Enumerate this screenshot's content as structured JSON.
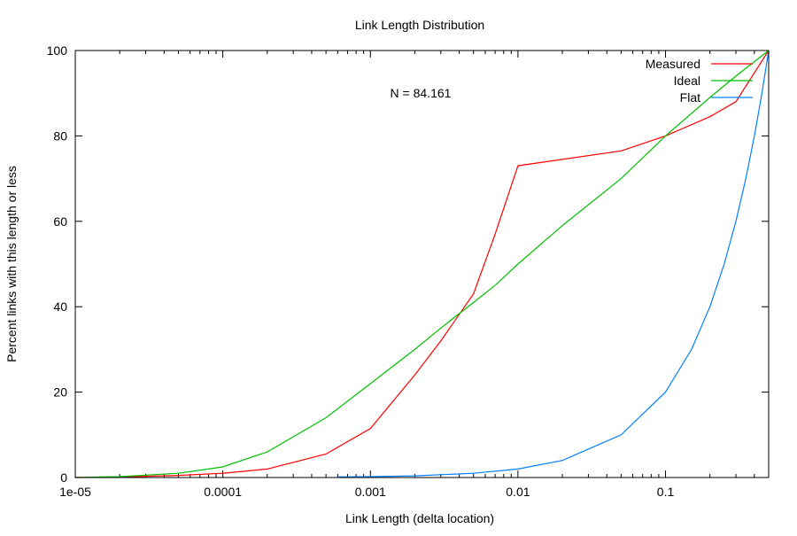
{
  "chart_data": {
    "type": "line",
    "title": "Link Length Distribution",
    "xlabel": "Link Length (delta location)",
    "ylabel": "Percent links with this length or less",
    "xscale": "log",
    "xlim": [
      1e-05,
      0.5
    ],
    "ylim": [
      0,
      100
    ],
    "xticks": [
      {
        "value": 1e-05,
        "label": "1e-05"
      },
      {
        "value": 0.0001,
        "label": "0.0001"
      },
      {
        "value": 0.001,
        "label": "0.001"
      },
      {
        "value": 0.01,
        "label": "0.01"
      },
      {
        "value": 0.1,
        "label": "0.1"
      }
    ],
    "yticks": [
      {
        "value": 0,
        "label": "0"
      },
      {
        "value": 20,
        "label": "20"
      },
      {
        "value": 40,
        "label": "40"
      },
      {
        "value": 60,
        "label": "60"
      },
      {
        "value": 80,
        "label": "80"
      },
      {
        "value": 100,
        "label": "100"
      }
    ],
    "grid": false,
    "legend_position": "top-right",
    "annotation": "N = 84.161",
    "series": [
      {
        "name": "Measured",
        "color": "#ff0000",
        "x": [
          1e-05,
          2e-05,
          5e-05,
          0.0001,
          0.0002,
          0.0005,
          0.001,
          0.002,
          0.003,
          0.005,
          0.007,
          0.01,
          0.02,
          0.05,
          0.1,
          0.2,
          0.3,
          0.5
        ],
        "y": [
          0,
          0.1,
          0.5,
          1,
          2,
          5.5,
          11.5,
          24,
          32,
          43,
          57,
          73,
          74.5,
          76.5,
          80,
          84.5,
          88,
          100
        ]
      },
      {
        "name": "Ideal",
        "color": "#00c000",
        "x": [
          1e-05,
          2e-05,
          5e-05,
          0.0001,
          0.0002,
          0.0005,
          0.001,
          0.002,
          0.003,
          0.005,
          0.007,
          0.01,
          0.02,
          0.05,
          0.1,
          0.2,
          0.3,
          0.5
        ],
        "y": [
          0,
          0.2,
          1,
          2.5,
          6,
          14,
          22,
          30,
          35,
          41,
          45,
          50,
          59,
          70,
          80,
          89,
          94,
          100
        ]
      },
      {
        "name": "Flat",
        "color": "#0080ff",
        "x": [
          0.0006,
          0.001,
          0.002,
          0.005,
          0.01,
          0.02,
          0.05,
          0.1,
          0.15,
          0.2,
          0.25,
          0.3,
          0.35,
          0.4,
          0.45,
          0.5
        ],
        "y": [
          0.12,
          0.2,
          0.4,
          1,
          2,
          4,
          10,
          20,
          30,
          40,
          50,
          60,
          70,
          80,
          90,
          100
        ]
      }
    ]
  }
}
